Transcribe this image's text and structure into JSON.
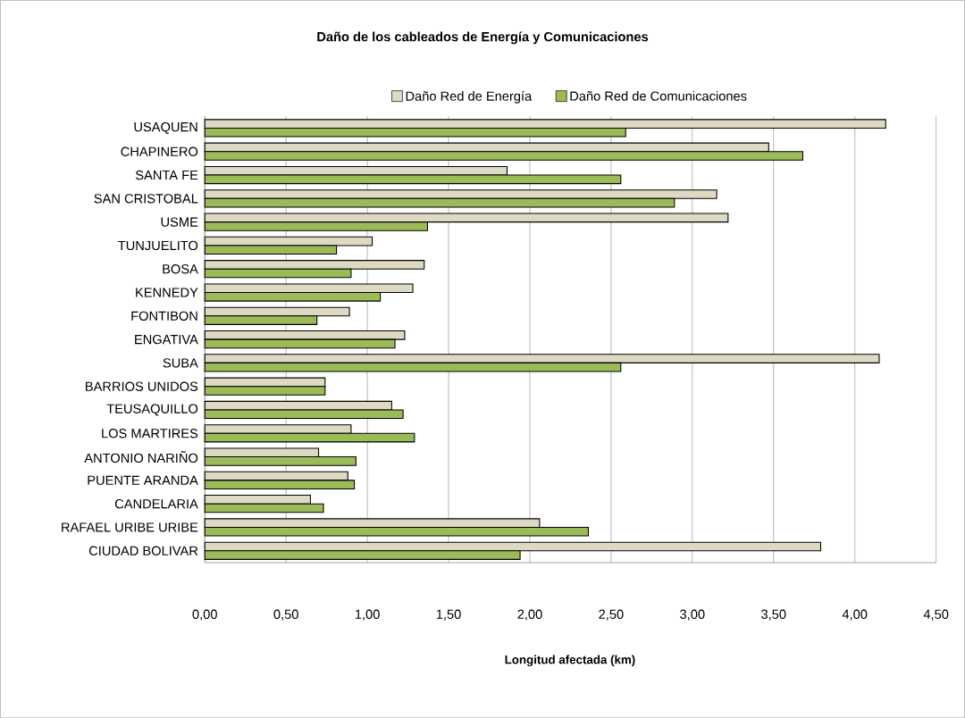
{
  "chart_data": {
    "type": "bar",
    "orientation": "horizontal",
    "title": "Daño de los cableados de Energía y Comunicaciones",
    "xlabel": "Longitud afectada  (km)",
    "categories": [
      "USAQUEN",
      "CHAPINERO",
      "SANTA FE",
      "SAN CRISTOBAL",
      "USME",
      "TUNJUELITO",
      "BOSA",
      "KENNEDY",
      "FONTIBON",
      "ENGATIVA",
      "SUBA",
      "BARRIOS UNIDOS",
      "TEUSAQUILLO",
      "LOS MARTIRES",
      "ANTONIO NARIÑO",
      "PUENTE  ARANDA",
      "CANDELARIA",
      "RAFAEL URIBE  URIBE",
      "CIUDAD BOLIVAR"
    ],
    "series": [
      {
        "name": "Daño Red de Energía",
        "color": "#ddd9c3",
        "values": [
          4.19,
          3.47,
          1.86,
          3.15,
          3.22,
          1.03,
          1.35,
          1.28,
          0.89,
          1.23,
          4.15,
          0.74,
          1.15,
          0.9,
          0.7,
          0.88,
          0.65,
          2.06,
          3.79
        ]
      },
      {
        "name": "Daño Red de Comunicaciones",
        "color": "#9bbb59",
        "values": [
          2.59,
          3.68,
          2.56,
          2.89,
          1.37,
          0.81,
          0.9,
          1.08,
          0.69,
          1.17,
          2.56,
          0.74,
          1.22,
          1.29,
          0.93,
          0.92,
          0.73,
          2.36,
          1.94
        ]
      }
    ],
    "xlim": [
      0,
      4.5
    ],
    "xticks": [
      {
        "value": 0,
        "label": "0,00"
      },
      {
        "value": 0.5,
        "label": "0,50"
      },
      {
        "value": 1,
        "label": "1,00"
      },
      {
        "value": 1.5,
        "label": "1,50"
      },
      {
        "value": 2,
        "label": "2,00"
      },
      {
        "value": 2.5,
        "label": "2,50"
      },
      {
        "value": 3,
        "label": "3,00"
      },
      {
        "value": 3.5,
        "label": "3,50"
      },
      {
        "value": 4,
        "label": "4,00"
      },
      {
        "value": 4.5,
        "label": "4,50"
      }
    ],
    "grid": "x",
    "legend": "top"
  }
}
